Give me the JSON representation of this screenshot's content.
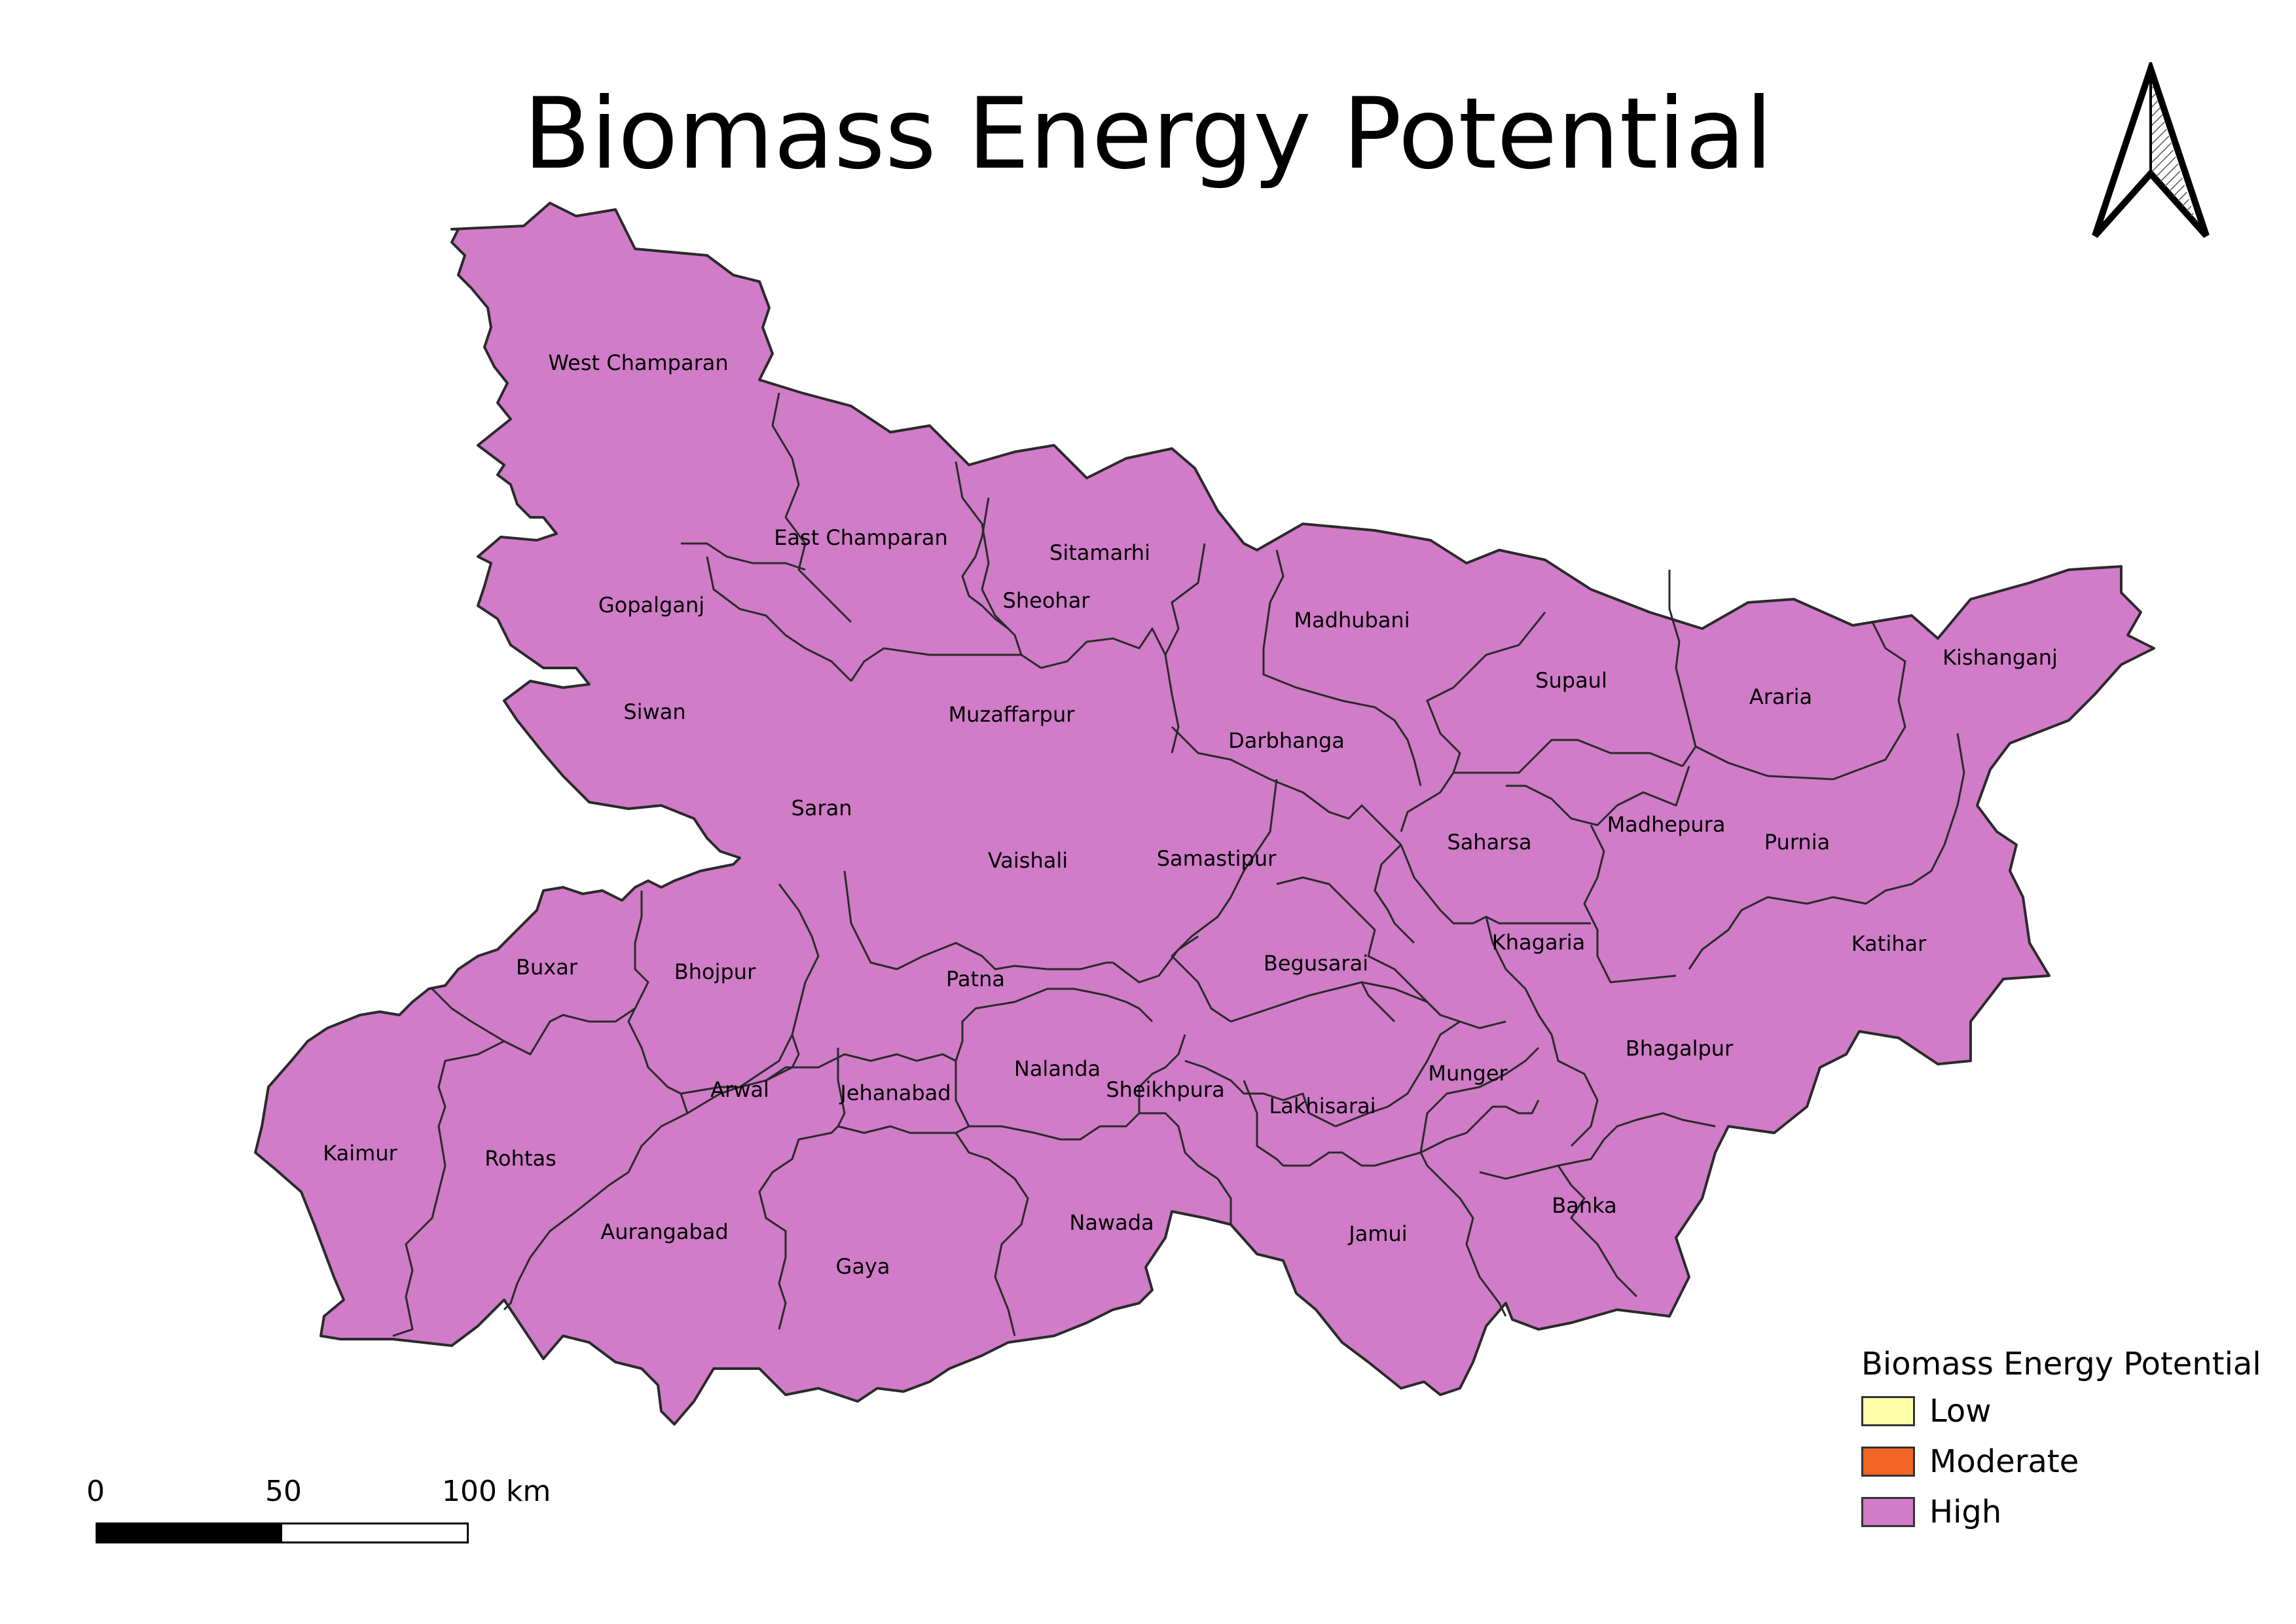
{
  "title": "Biomass Energy Potential",
  "north_arrow": {
    "icon": "north-arrow-icon"
  },
  "map": {
    "fill_color": "#d07cc8",
    "border_color": "#2a2a2a",
    "districts": [
      "West Champaran",
      "East Champaran",
      "Sitamarhi",
      "Sheohar",
      "Madhubani",
      "Gopalganj",
      "Siwan",
      "Muzaffarpur",
      "Darbhanga",
      "Supaul",
      "Araria",
      "Kishanganj",
      "Saran",
      "Vaishali",
      "Samastipur",
      "Saharsa",
      "Madhepura",
      "Purnia",
      "Katihar",
      "Khagaria",
      "Begusarai",
      "Buxar",
      "Bhojpur",
      "Patna",
      "Bhagalpur",
      "Munger",
      "Lakhisarai",
      "Sheikhpura",
      "Nalanda",
      "Jehanabad",
      "Arwal",
      "Kaimur",
      "Rohtas",
      "Aurangabad",
      "Gaya",
      "Nawada",
      "Jamui",
      "Banka"
    ]
  },
  "legend": {
    "title": "Biomass Energy Potential",
    "items": [
      {
        "label": "Low",
        "color": "#ffffa8"
      },
      {
        "label": "Moderate",
        "color": "#f26524"
      },
      {
        "label": "High",
        "color": "#d07cc8"
      }
    ]
  },
  "scale_bar": {
    "labels": [
      "0",
      "50",
      "100 km"
    ]
  }
}
